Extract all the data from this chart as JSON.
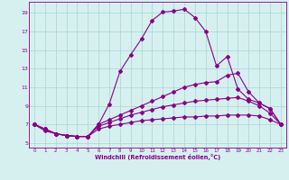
{
  "xlabel": "Windchill (Refroidissement éolien,°C)",
  "background_color": "#d6f0f0",
  "grid_color": "#b0d8d8",
  "line_color": "#880088",
  "marker": "D",
  "markersize": 2.0,
  "linewidth": 0.8,
  "xlim": [
    -0.5,
    23.5
  ],
  "ylim": [
    4.5,
    20.2
  ],
  "yticks": [
    5,
    7,
    9,
    11,
    13,
    15,
    17,
    19
  ],
  "xticks": [
    0,
    1,
    2,
    3,
    4,
    5,
    6,
    7,
    8,
    9,
    10,
    11,
    12,
    13,
    14,
    15,
    16,
    17,
    18,
    19,
    20,
    21,
    22,
    23
  ],
  "series": [
    [
      7.0,
      6.5,
      6.0,
      5.8,
      5.7,
      5.7,
      7.0,
      9.2,
      12.7,
      14.5,
      16.2,
      18.2,
      19.1,
      19.2,
      19.4,
      18.5,
      17.0,
      13.3,
      14.3,
      10.8,
      9.7,
      9.3,
      8.7,
      7.0
    ],
    [
      7.0,
      6.5,
      6.0,
      5.8,
      5.7,
      5.7,
      7.0,
      7.5,
      8.0,
      8.5,
      9.0,
      9.5,
      10.0,
      10.5,
      11.0,
      11.3,
      11.5,
      11.6,
      12.3,
      12.5,
      10.5,
      9.3,
      8.7,
      7.0
    ],
    [
      7.0,
      6.5,
      6.0,
      5.8,
      5.7,
      5.7,
      6.8,
      7.2,
      7.6,
      8.0,
      8.3,
      8.6,
      8.9,
      9.1,
      9.3,
      9.5,
      9.6,
      9.7,
      9.8,
      9.9,
      9.5,
      9.0,
      8.2,
      7.0
    ],
    [
      7.0,
      6.3,
      6.0,
      5.8,
      5.7,
      5.7,
      6.5,
      6.8,
      7.0,
      7.2,
      7.4,
      7.5,
      7.6,
      7.7,
      7.8,
      7.8,
      7.9,
      7.9,
      8.0,
      8.0,
      8.0,
      7.9,
      7.5,
      7.0
    ]
  ]
}
